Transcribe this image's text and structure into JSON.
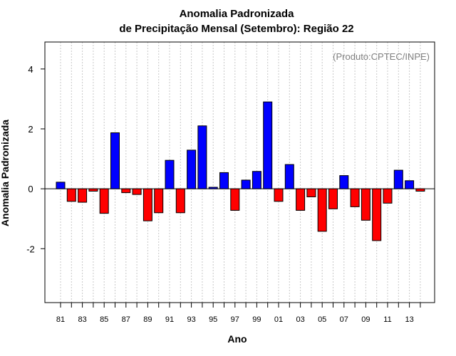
{
  "chart_data": {
    "type": "bar",
    "title": "Anomalia Padronizada",
    "subtitle": "de Precipitação Mensal (Setembro): Região 22",
    "xlabel": "Ano",
    "ylabel": "Anomalia Padronizada",
    "annotation": "(Produto:CPTEC/INPE)",
    "ylim": [
      -3.8,
      4.9
    ],
    "yticks": [
      -2,
      0,
      2,
      4
    ],
    "grid": "vertical dotted",
    "years": [
      1981,
      1982,
      1983,
      1984,
      1985,
      1986,
      1987,
      1988,
      1989,
      1990,
      1991,
      1992,
      1993,
      1994,
      1995,
      1996,
      1997,
      1998,
      1999,
      2000,
      2001,
      2002,
      2003,
      2004,
      2005,
      2006,
      2007,
      2008,
      2009,
      2010,
      2011,
      2012,
      2013,
      2014
    ],
    "xtick_labels": [
      "81",
      "83",
      "85",
      "87",
      "89",
      "91",
      "93",
      "95",
      "97",
      "99",
      "01",
      "03",
      "05",
      "07",
      "09",
      "11",
      "13"
    ],
    "values": [
      0.22,
      -0.42,
      -0.45,
      -0.08,
      -0.82,
      1.87,
      -0.13,
      -0.19,
      -1.07,
      -0.8,
      0.95,
      -0.8,
      1.29,
      2.1,
      0.05,
      0.54,
      -0.72,
      0.29,
      0.58,
      2.9,
      -0.42,
      0.81,
      -0.72,
      -0.27,
      -1.42,
      -0.67,
      0.44,
      -0.6,
      -1.05,
      -1.73,
      -0.48,
      0.62,
      0.27,
      -0.08
    ],
    "colors": {
      "positive": "#0000ff",
      "negative": "#ff0000"
    }
  }
}
